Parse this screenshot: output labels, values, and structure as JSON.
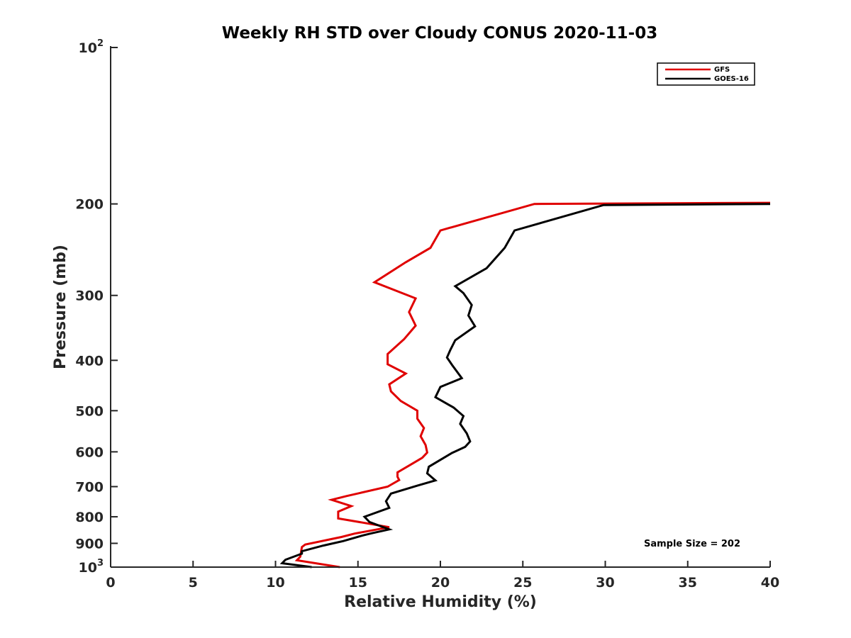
{
  "chart_data": {
    "type": "line",
    "title": "Weekly RH STD over Cloudy CONUS 2020-11-03",
    "xlabel": "Relative Humidity (%)",
    "ylabel": "Pressure (mb)",
    "xlim": [
      0,
      40
    ],
    "ylim": [
      100,
      1000
    ],
    "y_scale": "log",
    "y_reversed": true,
    "x_ticks": [
      "0",
      "5",
      "10",
      "15",
      "20",
      "25",
      "30",
      "35",
      "40"
    ],
    "y_ticks": [
      {
        "value": 100,
        "base": "10",
        "exp": "2"
      },
      {
        "value": 200,
        "label": "200"
      },
      {
        "value": 300,
        "label": "300"
      },
      {
        "value": 400,
        "label": "400"
      },
      {
        "value": 500,
        "label": "500"
      },
      {
        "value": 600,
        "label": "600"
      },
      {
        "value": 700,
        "label": "700"
      },
      {
        "value": 800,
        "label": "800"
      },
      {
        "value": 900,
        "label": "900"
      },
      {
        "value": 1000,
        "base": "10",
        "exp": "3"
      }
    ],
    "grid": false,
    "legend_position": "top-right",
    "annotation": "Sample Size = 202",
    "series": [
      {
        "name": "GFS",
        "color": "#e00000",
        "points": [
          [
            40.0,
            199
          ],
          [
            25.7,
            200
          ],
          [
            20.0,
            225
          ],
          [
            19.4,
            243
          ],
          [
            17.9,
            259
          ],
          [
            16.0,
            283
          ],
          [
            18.5,
            304
          ],
          [
            18.1,
            323
          ],
          [
            18.5,
            343
          ],
          [
            17.8,
            364
          ],
          [
            16.8,
            389
          ],
          [
            16.8,
            407
          ],
          [
            17.9,
            424
          ],
          [
            16.9,
            445
          ],
          [
            17.0,
            459
          ],
          [
            17.6,
            479
          ],
          [
            18.6,
            500
          ],
          [
            18.6,
            518
          ],
          [
            19.0,
            540
          ],
          [
            18.8,
            560
          ],
          [
            19.1,
            582
          ],
          [
            19.2,
            602
          ],
          [
            18.9,
            616
          ],
          [
            18.2,
            635
          ],
          [
            17.4,
            657
          ],
          [
            17.4,
            670
          ],
          [
            17.5,
            680
          ],
          [
            16.8,
            700
          ],
          [
            14.3,
            730
          ],
          [
            13.4,
            742
          ],
          [
            14.6,
            763
          ],
          [
            13.8,
            782
          ],
          [
            13.8,
            806
          ],
          [
            16.9,
            838
          ],
          [
            14.8,
            862
          ],
          [
            14.0,
            875
          ],
          [
            13.4,
            883
          ],
          [
            11.8,
            905
          ],
          [
            11.6,
            915
          ],
          [
            11.5,
            955
          ],
          [
            11.3,
            970
          ],
          [
            13.9,
            1000
          ]
        ]
      },
      {
        "name": "GOES-16",
        "color": "#000000",
        "points": [
          [
            40.0,
            200
          ],
          [
            29.9,
            201
          ],
          [
            24.5,
            225
          ],
          [
            23.9,
            243
          ],
          [
            22.8,
            266
          ],
          [
            20.9,
            288
          ],
          [
            21.4,
            297
          ],
          [
            21.9,
            313
          ],
          [
            21.7,
            328
          ],
          [
            22.1,
            344
          ],
          [
            20.9,
            366
          ],
          [
            20.6,
            382
          ],
          [
            20.4,
            395
          ],
          [
            20.7,
            408
          ],
          [
            21.3,
            433
          ],
          [
            20.0,
            450
          ],
          [
            19.7,
            471
          ],
          [
            20.8,
            493
          ],
          [
            21.4,
            512
          ],
          [
            21.2,
            530
          ],
          [
            21.6,
            553
          ],
          [
            21.8,
            573
          ],
          [
            21.5,
            587
          ],
          [
            20.7,
            603
          ],
          [
            19.3,
            641
          ],
          [
            19.2,
            660
          ],
          [
            19.7,
            681
          ],
          [
            18.6,
            697
          ],
          [
            17.0,
            722
          ],
          [
            16.7,
            747
          ],
          [
            16.9,
            769
          ],
          [
            15.4,
            800
          ],
          [
            15.7,
            819
          ],
          [
            16.9,
            846
          ],
          [
            15.8,
            861
          ],
          [
            15.3,
            869
          ],
          [
            14.1,
            891
          ],
          [
            12.9,
            909
          ],
          [
            11.6,
            932
          ],
          [
            11.6,
            942
          ],
          [
            10.6,
            968
          ],
          [
            10.4,
            983
          ],
          [
            12.2,
            1000
          ]
        ]
      }
    ]
  }
}
